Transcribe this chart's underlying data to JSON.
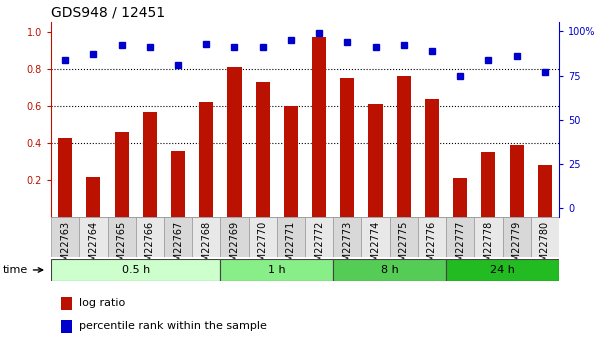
{
  "title": "GDS948 / 12451",
  "samples": [
    "GSM22763",
    "GSM22764",
    "GSM22765",
    "GSM22766",
    "GSM22767",
    "GSM22768",
    "GSM22769",
    "GSM22770",
    "GSM22771",
    "GSM22772",
    "GSM22773",
    "GSM22774",
    "GSM22775",
    "GSM22776",
    "GSM22777",
    "GSM22778",
    "GSM22779",
    "GSM22780"
  ],
  "log_ratio": [
    0.43,
    0.22,
    0.46,
    0.57,
    0.36,
    0.62,
    0.81,
    0.73,
    0.6,
    0.97,
    0.75,
    0.61,
    0.76,
    0.64,
    0.21,
    0.35,
    0.39,
    0.28
  ],
  "percentile": [
    84,
    87,
    92,
    91,
    81,
    93,
    91,
    91,
    95,
    99,
    94,
    91,
    92,
    89,
    75,
    84,
    86,
    77
  ],
  "time_groups": [
    {
      "label": "0.5 h",
      "start": 0,
      "end": 6,
      "color": "#ccffcc"
    },
    {
      "label": "1 h",
      "start": 6,
      "end": 10,
      "color": "#88ee88"
    },
    {
      "label": "8 h",
      "start": 10,
      "end": 14,
      "color": "#55cc55"
    },
    {
      "label": "24 h",
      "start": 14,
      "end": 18,
      "color": "#22bb22"
    }
  ],
  "bar_color": "#bb1100",
  "dot_color": "#0000cc",
  "ylim_left": [
    0.0,
    1.05
  ],
  "ylim_right": [
    -5,
    105
  ],
  "yticks_left": [
    0.2,
    0.4,
    0.6,
    0.8,
    1.0
  ],
  "yticks_right": [
    0,
    25,
    50,
    75,
    100
  ],
  "ytick_labels_right": [
    "0",
    "25",
    "50",
    "75",
    "100%"
  ],
  "hlines": [
    0.4,
    0.6,
    0.8
  ],
  "legend_items": [
    "log ratio",
    "percentile rank within the sample"
  ],
  "bg_color": "#ffffff",
  "title_fontsize": 10,
  "tick_fontsize": 7,
  "bar_width": 0.5,
  "col_bg_odd": "#d8d8d8",
  "col_bg_even": "#e8e8e8",
  "spine_color": "#bbbbbb"
}
